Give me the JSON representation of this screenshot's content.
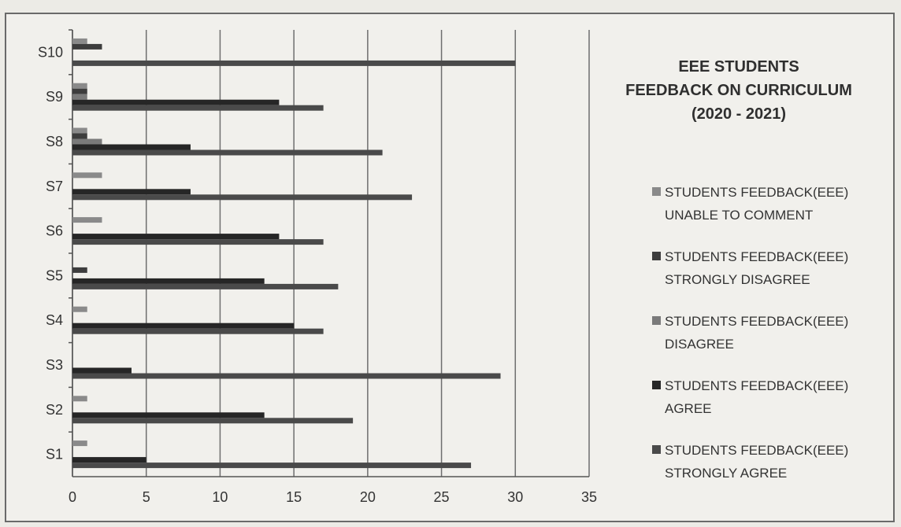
{
  "chart_data": {
    "type": "bar",
    "orientation": "horizontal",
    "title_lines": [
      "EEE STUDENTS",
      "FEEDBACK ON CURRICULUM",
      "(2020 - 2021)"
    ],
    "categories": [
      "S1",
      "S2",
      "S3",
      "S4",
      "S5",
      "S6",
      "S7",
      "S8",
      "S9",
      "S10"
    ],
    "xlim": [
      0,
      35
    ],
    "xticks": [
      0,
      5,
      10,
      15,
      20,
      25,
      30,
      35
    ],
    "grid": "vertical",
    "legend_position": "right",
    "series": [
      {
        "name": "STUDENTS FEEDBACK(EEE) UNABLE TO COMMENT",
        "legend_lines": [
          "STUDENTS FEEDBACK(EEE)",
          "UNABLE TO COMMENT"
        ],
        "color": "#8a8a8a",
        "values": [
          1,
          1,
          0,
          1,
          0,
          2,
          2,
          1,
          1,
          1
        ]
      },
      {
        "name": "STUDENTS FEEDBACK(EEE) STRONGLY DISAGREE",
        "legend_lines": [
          "STUDENTS FEEDBACK(EEE)",
          "STRONGLY DISAGREE"
        ],
        "color": "#3d3d3d",
        "values": [
          0,
          0,
          0,
          0,
          1,
          0,
          0,
          1,
          1,
          2
        ]
      },
      {
        "name": "STUDENTS FEEDBACK(EEE) DISAGREE",
        "legend_lines": [
          "STUDENTS FEEDBACK(EEE)",
          "DISAGREE"
        ],
        "color": "#7a7a7a",
        "values": [
          0,
          0,
          0,
          0,
          0,
          0,
          0,
          2,
          1,
          0
        ]
      },
      {
        "name": "STUDENTS FEEDBACK(EEE) AGREE",
        "legend_lines": [
          "STUDENTS FEEDBACK(EEE)",
          "AGREE"
        ],
        "color": "#262626",
        "values": [
          5,
          13,
          4,
          15,
          13,
          14,
          8,
          8,
          14,
          0
        ]
      },
      {
        "name": "STUDENTS FEEDBACK(EEE) STRONGLY AGREE",
        "legend_lines": [
          "STUDENTS FEEDBACK(EEE)",
          "STRONGLY AGREE"
        ],
        "color": "#4a4a4a",
        "values": [
          27,
          19,
          29,
          17,
          18,
          17,
          23,
          21,
          17,
          30
        ]
      }
    ]
  }
}
